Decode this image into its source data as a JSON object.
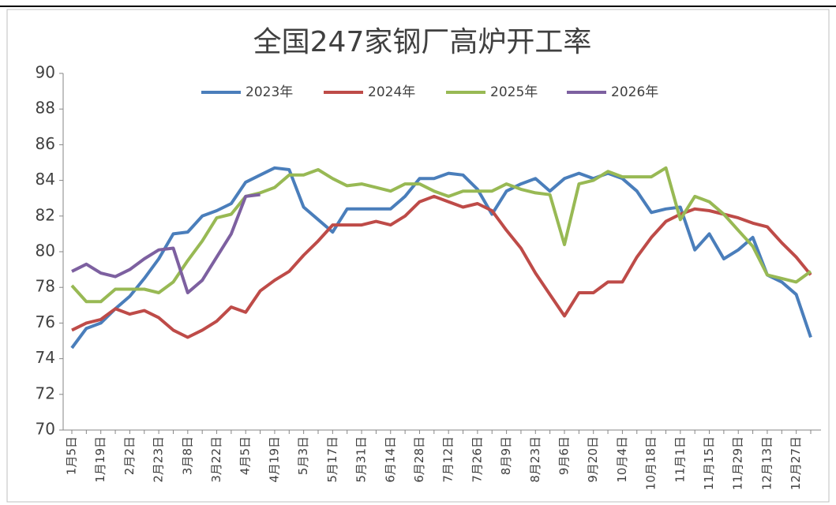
{
  "chart_data": {
    "type": "line",
    "title": "全国247家钢厂高炉开工率",
    "categories": [
      "1月5日",
      null,
      "1月19日",
      null,
      "2月2日",
      null,
      "2月23日",
      null,
      "3月8日",
      null,
      "3月22日",
      null,
      "4月5日",
      null,
      "4月19日",
      null,
      "5月3日",
      null,
      "5月17日",
      null,
      "5月31日",
      null,
      "6月14日",
      null,
      "6月28日",
      null,
      "7月12日",
      null,
      "7月26日",
      null,
      "8月9日",
      null,
      "8月23日",
      null,
      "9月6日",
      null,
      "9月20日",
      null,
      "10月4日",
      null,
      "10月18日",
      null,
      "11月1日",
      null,
      "11月15日",
      null,
      "11月29日",
      null,
      "12月13日",
      null,
      "12月27日",
      null
    ],
    "series": [
      {
        "name": "2023年",
        "color": "#4a7ebb",
        "values": [
          74.6,
          75.7,
          76.0,
          76.8,
          77.5,
          78.5,
          79.6,
          81.0,
          81.1,
          82.0,
          82.3,
          82.7,
          83.9,
          84.3,
          84.7,
          84.6,
          82.5,
          81.8,
          81.1,
          82.4,
          82.4,
          82.4,
          82.4,
          83.1,
          84.1,
          84.1,
          84.4,
          84.3,
          83.5,
          82.1,
          83.4,
          83.8,
          84.1,
          83.4,
          84.1,
          84.4,
          84.1,
          84.4,
          84.1,
          83.4,
          82.2,
          82.4,
          82.5,
          80.1,
          81.0,
          79.6,
          80.1,
          80.8,
          78.7,
          78.3,
          77.6,
          75.2
        ]
      },
      {
        "name": "2024年",
        "color": "#be4b48",
        "values": [
          75.6,
          76.0,
          76.2,
          76.8,
          76.5,
          76.7,
          76.3,
          75.6,
          75.2,
          75.6,
          76.1,
          76.9,
          76.6,
          77.8,
          78.4,
          78.9,
          79.8,
          80.6,
          81.5,
          81.5,
          81.5,
          81.7,
          81.5,
          82.0,
          82.8,
          83.1,
          82.8,
          82.5,
          82.7,
          82.3,
          81.2,
          80.2,
          78.8,
          77.6,
          76.4,
          77.7,
          77.7,
          78.3,
          78.3,
          79.7,
          80.8,
          81.7,
          82.1,
          82.4,
          82.3,
          82.1,
          81.9,
          81.6,
          81.4,
          80.5,
          79.7,
          78.7
        ]
      },
      {
        "name": "2025年",
        "color": "#98b954",
        "values": [
          78.1,
          77.2,
          77.2,
          77.9,
          77.9,
          77.9,
          77.7,
          78.3,
          79.5,
          80.6,
          81.9,
          82.1,
          83.1,
          83.3,
          83.6,
          84.3,
          84.3,
          84.6,
          84.1,
          83.7,
          83.8,
          83.6,
          83.4,
          83.8,
          83.8,
          83.4,
          83.1,
          83.4,
          83.4,
          83.4,
          83.8,
          83.5,
          83.3,
          83.2,
          80.4,
          83.8,
          84.0,
          84.5,
          84.2,
          84.2,
          84.2,
          84.7,
          81.8,
          83.1,
          82.8,
          82.1,
          81.2,
          80.3,
          78.7,
          78.5,
          78.3,
          78.9
        ]
      },
      {
        "name": "2026年",
        "color": "#7d60a0",
        "values": [
          78.9,
          79.3,
          78.8,
          78.6,
          79.0,
          79.6,
          80.1,
          80.2,
          77.7,
          78.4,
          79.7,
          81.0,
          83.1,
          83.2,
          null,
          null,
          null,
          null,
          null,
          null,
          null,
          null,
          null,
          null,
          null,
          null,
          null,
          null,
          null,
          null,
          null,
          null,
          null,
          null,
          null,
          null,
          null,
          null,
          null,
          null,
          null,
          null,
          null,
          null,
          null,
          null,
          null,
          null,
          null,
          null,
          null,
          null
        ]
      }
    ],
    "ylim": [
      70,
      90
    ],
    "yticks": [
      70,
      72,
      74,
      76,
      78,
      80,
      82,
      84,
      86,
      88,
      90
    ],
    "legend": "top"
  }
}
